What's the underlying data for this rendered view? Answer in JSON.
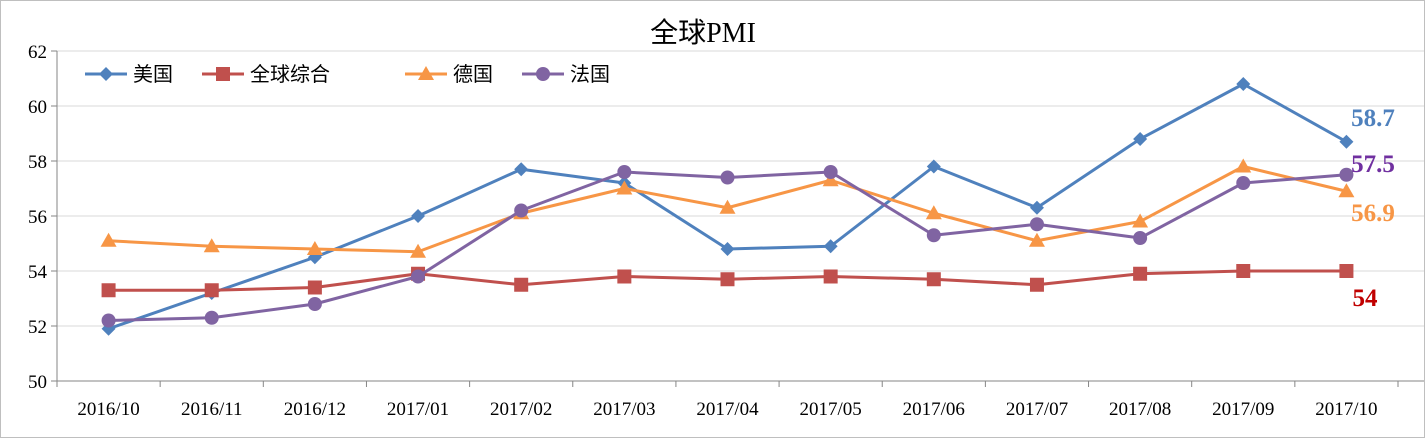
{
  "chart_data": {
    "type": "line",
    "title": "全球PMI",
    "xlabel": "",
    "ylabel": "",
    "ylim": [
      50,
      62
    ],
    "yticks": [
      50,
      52,
      54,
      56,
      58,
      60,
      62
    ],
    "grid": true,
    "legend": "top-left",
    "categories": [
      "2016/10",
      "2016/11",
      "2016/12",
      "2017/01",
      "2017/02",
      "2017/03",
      "2017/04",
      "2017/05",
      "2017/06",
      "2017/07",
      "2017/08",
      "2017/09",
      "2017/10"
    ],
    "series": [
      {
        "name": "美国",
        "color": "#4f81bd",
        "marker": "diamond",
        "label_color": "#4f81bd",
        "values": [
          51.9,
          53.2,
          54.5,
          56.0,
          57.7,
          57.2,
          54.8,
          54.9,
          57.8,
          56.3,
          58.8,
          60.8,
          58.7
        ],
        "end_label": "58.7"
      },
      {
        "name": "全球综合",
        "color": "#c0504d",
        "marker": "square",
        "label_color": "#c00000",
        "values": [
          53.3,
          53.3,
          53.4,
          53.9,
          53.5,
          53.8,
          53.7,
          53.8,
          53.7,
          53.5,
          53.9,
          54.0,
          54.0
        ],
        "end_label": "54"
      },
      {
        "name": "德国",
        "color": "#f79646",
        "marker": "triangle",
        "label_color": "#f79646",
        "values": [
          55.1,
          54.9,
          54.8,
          54.7,
          56.1,
          57.0,
          56.3,
          57.3,
          56.1,
          55.1,
          55.8,
          57.8,
          56.9
        ],
        "end_label": "56.9"
      },
      {
        "name": "法国",
        "color": "#8064a2",
        "marker": "circle",
        "label_color": "#7030a0",
        "values": [
          52.2,
          52.3,
          52.8,
          53.8,
          56.2,
          57.6,
          57.4,
          57.6,
          55.3,
          55.7,
          55.2,
          57.2,
          57.5
        ],
        "end_label": "57.5"
      }
    ]
  }
}
